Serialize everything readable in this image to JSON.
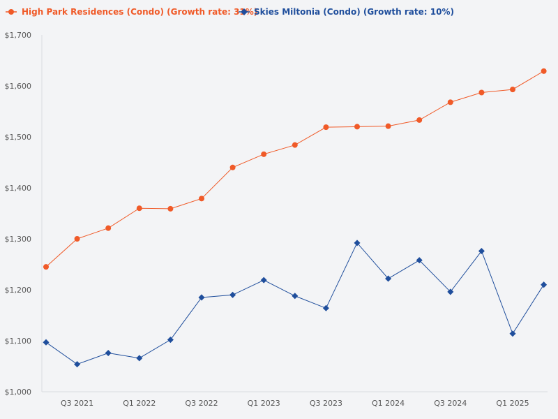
{
  "chart_data": {
    "type": "line",
    "x": [
      "Q2 2021",
      "Q3 2021",
      "Q4 2021",
      "Q1 2022",
      "Q2 2022",
      "Q3 2022",
      "Q4 2022",
      "Q1 2023",
      "Q2 2023",
      "Q3 2023",
      "Q4 2023",
      "Q1 2024",
      "Q2 2024",
      "Q3 2024",
      "Q4 2024",
      "Q1 2025",
      "Q2 2025"
    ],
    "x_tick_labels": [
      "Q3 2021",
      "Q1 2022",
      "Q3 2022",
      "Q1 2023",
      "Q3 2023",
      "Q1 2024",
      "Q3 2024",
      "Q1 2025"
    ],
    "y_ticks": [
      "$1,000",
      "$1,100",
      "$1,200",
      "$1,300",
      "$1,400",
      "$1,500",
      "$1,600",
      "$1,700"
    ],
    "ylim": [
      1000,
      1700
    ],
    "legend_position": "top-left",
    "series": [
      {
        "name": "High Park Residences (Condo) (Growth rate: 31%)",
        "color": "#f05a28",
        "marker": "circle",
        "values": [
          1245,
          1300,
          1321,
          1360,
          1359,
          1379,
          1440,
          1466,
          1484,
          1519,
          1520,
          1521,
          1533,
          1568,
          1587,
          1593,
          1629
        ]
      },
      {
        "name": "Skies Miltonia (Condo) (Growth rate: 10%)",
        "color": "#1f4e9c",
        "marker": "diamond",
        "values": [
          1097,
          1054,
          1076,
          1066,
          1102,
          1185,
          1190,
          1219,
          1188,
          1164,
          1292,
          1222,
          1258,
          1196,
          1276,
          1114,
          1210
        ]
      }
    ]
  }
}
